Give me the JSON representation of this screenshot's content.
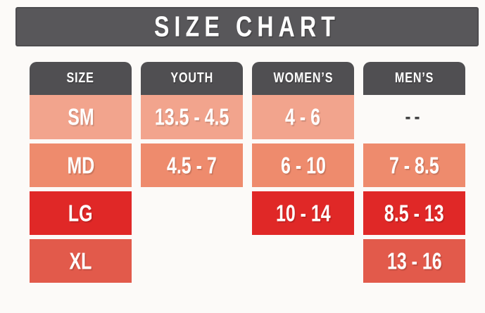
{
  "title": "SIZE CHART",
  "colors": {
    "banner_bg": "#58575a",
    "header_bg": "#504f52",
    "row_sm": "#f2a48d",
    "row_md": "#ee8b6d",
    "row_lg": "#e02827",
    "row_xl": "#e25a4b",
    "dash_text": "#404041",
    "cell_text": "#ffffff",
    "page_bg": "#fcfaf8"
  },
  "chart_data": {
    "type": "table",
    "title": "SIZE CHART",
    "columns": [
      "SIZE",
      "YOUTH",
      "WOMEN’S",
      "MEN’S"
    ],
    "rows": [
      [
        "SM",
        "13.5 - 4.5",
        "4 - 6",
        "--"
      ],
      [
        "MD",
        "4.5 - 7",
        "6 - 10",
        "7 - 8.5"
      ],
      [
        "LG",
        "",
        "10 - 14",
        "8.5 - 13"
      ],
      [
        "XL",
        "",
        "",
        "13 - 16"
      ]
    ]
  }
}
